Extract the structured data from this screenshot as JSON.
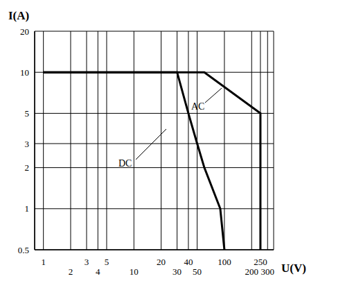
{
  "chart_data": {
    "type": "line",
    "x_label": "U(V)",
    "y_label": "I(A)",
    "log": true,
    "grid": true,
    "xlim": [
      0.8,
      350
    ],
    "ylim": [
      0.5,
      20
    ],
    "xticks": [
      1,
      2,
      3,
      4,
      5,
      10,
      20,
      30,
      40,
      50,
      100,
      200,
      250,
      300
    ],
    "yticks": [
      0.5,
      1,
      2,
      3,
      5,
      10,
      20
    ],
    "series": [
      {
        "name": "DC",
        "color": "#000000",
        "line_style": "solid",
        "x": [
          1,
          30,
          40,
          50,
          60,
          90,
          100
        ],
        "values": [
          10,
          10,
          5,
          3,
          2,
          1,
          0.5
        ]
      },
      {
        "name": "AC",
        "color": "#000000",
        "line_style": "solid",
        "x": [
          1,
          60,
          250,
          250
        ],
        "values": [
          10,
          10,
          5,
          0.5
        ]
      }
    ]
  }
}
